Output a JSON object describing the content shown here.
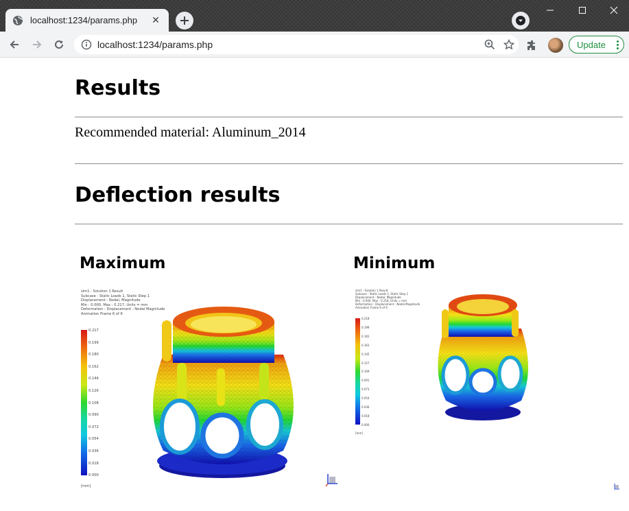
{
  "browser": {
    "tab_title": "localhost:1234/params.php",
    "tab_close": "✕",
    "url": "localhost:1234/params.php",
    "update_label": "Update",
    "icons": [
      "globe-icon",
      "close-icon",
      "plus-icon",
      "media-control-icon",
      "minimize-icon",
      "maximize-icon",
      "close-window-icon",
      "back-icon",
      "forward-icon",
      "reload-icon",
      "info-icon",
      "zoom-icon",
      "star-icon",
      "extensions-icon",
      "avatar",
      "more-vert-icon"
    ]
  },
  "page": {
    "title": "Results",
    "material_text": "Recommended material: Aluminum_2014",
    "deflection_title": "Deflection results",
    "maximum": {
      "heading": "Maximum",
      "caption": [
        "sim1 : Solution 1 Result",
        "Subcase - Static Loads 1, Static Step 1",
        "Displacement - Nodal, Magnitude",
        "Min : 0.000, Max : 0.217, Units = mm",
        "Deformation : Displacement - Nodal Magnitude",
        "Animation Frame 6 of 6"
      ],
      "legend": [
        "0.217",
        "0.199",
        "0.180",
        "0.162",
        "0.144",
        "0.126",
        "0.108",
        "0.090",
        "0.072",
        "0.054",
        "0.036",
        "0.018",
        "0.000"
      ],
      "units": "[mm]"
    },
    "minimum": {
      "heading": "Minimum",
      "caption": [
        "sim1 : Solution 1 Result",
        "Subcase - Static Loads 1, Static Step 1",
        "Displacement - Nodal, Magnitude",
        "Min : 0.000, Max : 0.218, Units = mm",
        "Deformation : Displacement - Nodal Magnitude",
        "Animation Frame 6 of 6"
      ],
      "legend": [
        "0.218",
        "0.199",
        "0.181",
        "0.163",
        "0.145",
        "0.127",
        "0.109",
        "0.091",
        "0.073",
        "0.054",
        "0.036",
        "0.018",
        "0.000"
      ],
      "units": "[mm]"
    }
  },
  "colors": {
    "chrome_dark": "#3c3c3c",
    "toolbar": "#f1f3f4",
    "update_green": "#1e8e3e"
  }
}
